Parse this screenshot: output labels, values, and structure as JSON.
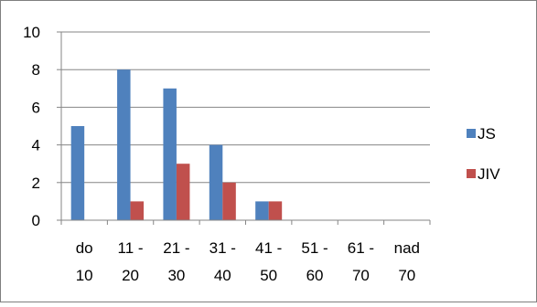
{
  "chart_data": {
    "type": "bar",
    "categories": [
      [
        "do",
        "10"
      ],
      [
        "11 -",
        "20"
      ],
      [
        "21 -",
        "30"
      ],
      [
        "31 -",
        "40"
      ],
      [
        "41 -",
        "50"
      ],
      [
        "51 -",
        "60"
      ],
      [
        "61 -",
        "70"
      ],
      [
        "nad",
        "70"
      ]
    ],
    "series": [
      {
        "name": "JS",
        "color": "#4F81BD",
        "values": [
          5,
          8,
          7,
          4,
          1,
          0,
          0,
          0
        ]
      },
      {
        "name": "JIV",
        "color": "#C0504D",
        "values": [
          0,
          1,
          3,
          2,
          1,
          0,
          0,
          0
        ]
      }
    ],
    "ylim": [
      0,
      10
    ],
    "yticks": [
      0,
      2,
      4,
      6,
      8,
      10
    ],
    "grid": true,
    "legend": "right",
    "title": "",
    "xlabel": "",
    "ylabel": ""
  }
}
